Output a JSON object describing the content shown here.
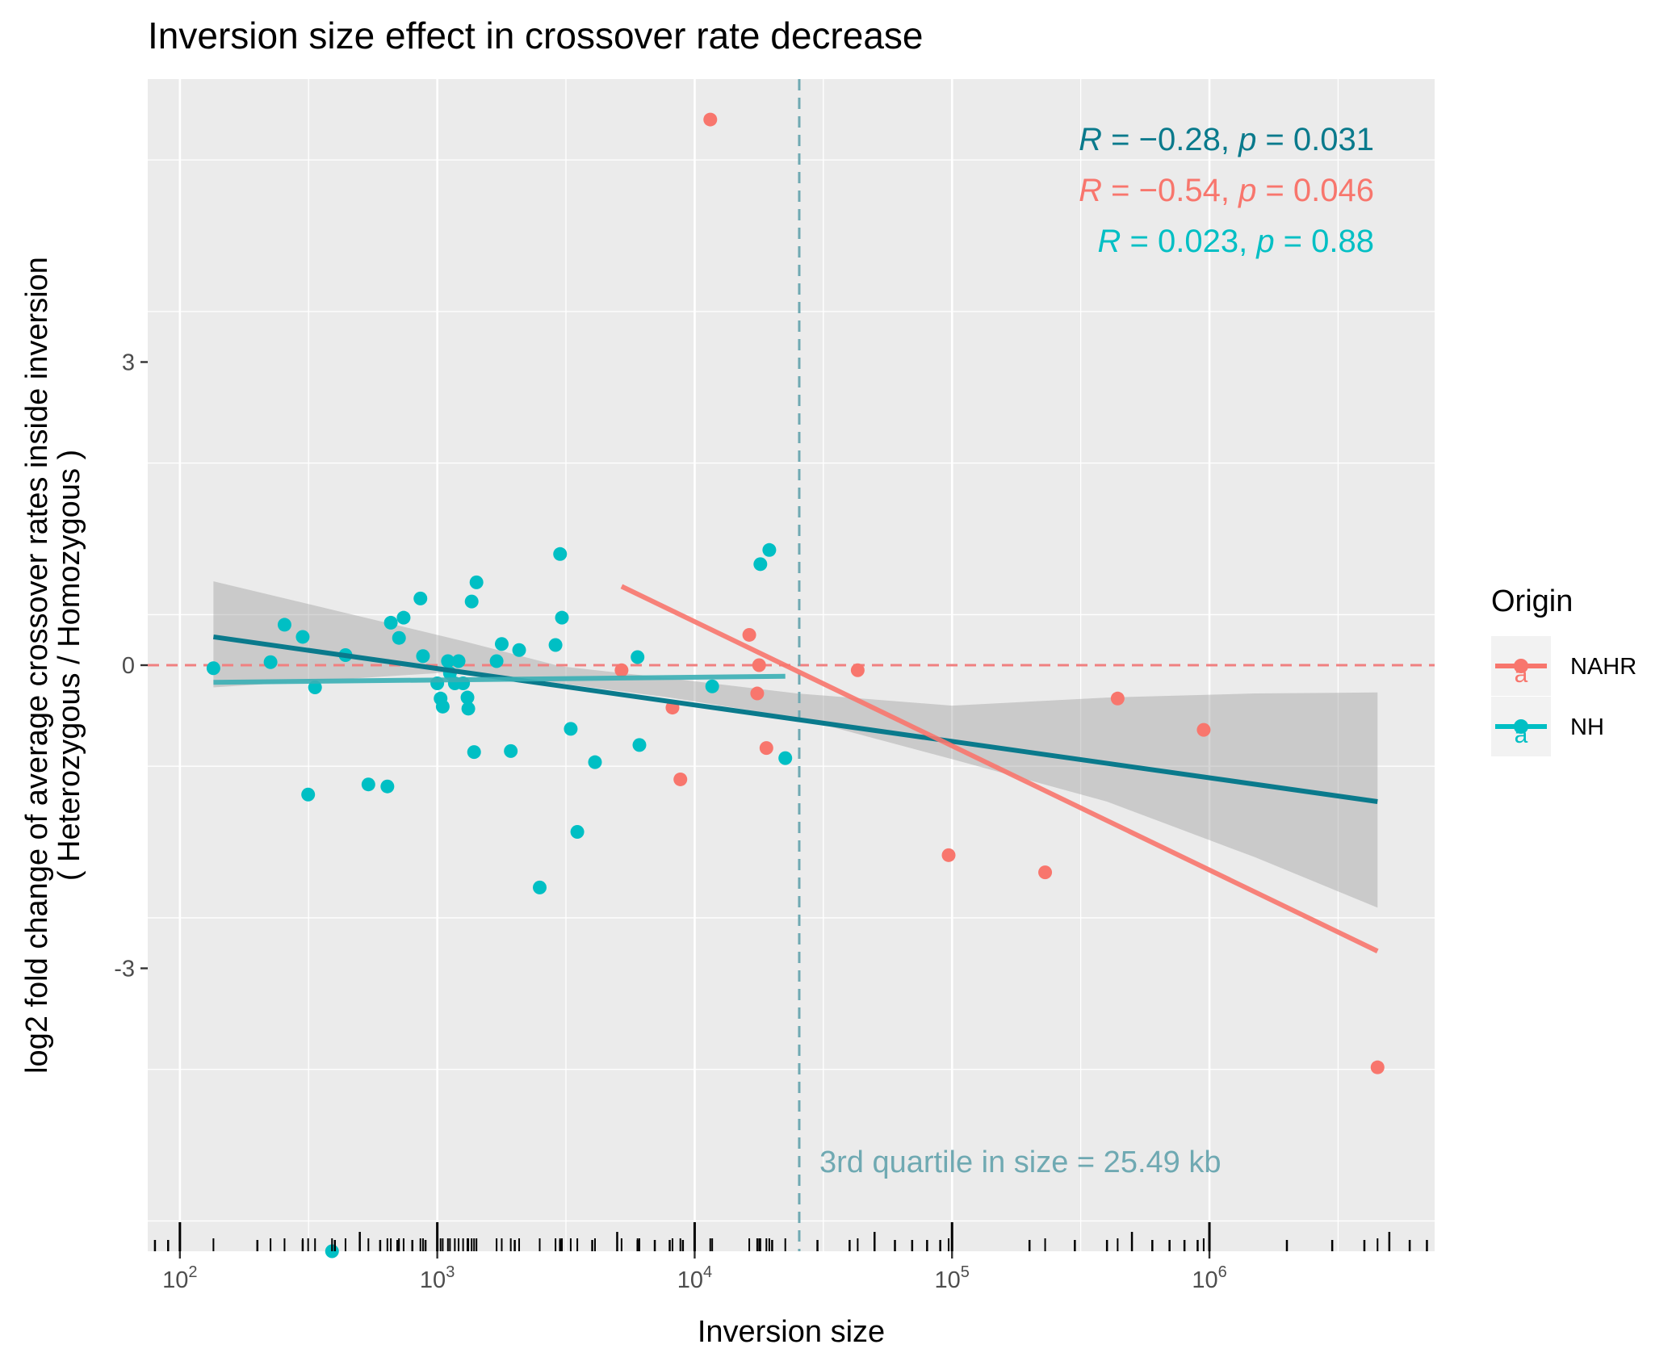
{
  "chart_data": {
    "type": "scatter",
    "title": "Inversion size effect in crossover rate decrease",
    "xlabel": "Inversion size",
    "ylabel_line1": "log2 fold change of average crossover rates inside inversion",
    "ylabel_line2": "( Heterozygous / Homozygous )",
    "x_scale": "log10",
    "xlim": [
      75,
      7500000
    ],
    "ylim": [
      -5.8,
      5.8
    ],
    "x_tick_labels": [
      {
        "value": 100,
        "base": "10",
        "exp": "2"
      },
      {
        "value": 1000,
        "base": "10",
        "exp": "3"
      },
      {
        "value": 10000,
        "base": "10",
        "exp": "4"
      },
      {
        "value": 100000,
        "base": "10",
        "exp": "5"
      },
      {
        "value": 1000000,
        "base": "10",
        "exp": "6"
      }
    ],
    "y_ticks": [
      -3,
      0,
      3
    ],
    "y_tick_labels": [
      "-3",
      "0",
      "3"
    ],
    "grid": true,
    "legend": {
      "title": "Origin",
      "position": "right",
      "key_glyph": "a",
      "entries": [
        {
          "name": "NAHR",
          "color": "#F8766D"
        },
        {
          "name": "NH",
          "color": "#00BFC4"
        }
      ]
    },
    "colors": {
      "NAHR": "#F8766D",
      "NH": "#00BFC4",
      "overall": "#0A7A8C",
      "ribbon": "#C2C2C2",
      "quartile_line": "#6FA9B2",
      "zero_line": "#F08080",
      "panel": "#EBEBEB"
    },
    "series": [
      {
        "name": "NAHR",
        "points": [
          {
            "x": 11500,
            "y": 5.4
          },
          {
            "x": 5200,
            "y": -0.05
          },
          {
            "x": 8200,
            "y": -0.42
          },
          {
            "x": 8800,
            "y": -1.13
          },
          {
            "x": 16300,
            "y": 0.3
          },
          {
            "x": 17500,
            "y": -0.28
          },
          {
            "x": 17800,
            "y": 0.0
          },
          {
            "x": 19000,
            "y": -0.82
          },
          {
            "x": 43000,
            "y": -0.05
          },
          {
            "x": 97000,
            "y": -1.88
          },
          {
            "x": 230000,
            "y": -2.05
          },
          {
            "x": 440000,
            "y": -0.33
          },
          {
            "x": 950000,
            "y": -0.64
          },
          {
            "x": 4500000,
            "y": -3.98
          }
        ]
      },
      {
        "name": "NH",
        "points": [
          {
            "x": 135,
            "y": -0.03
          },
          {
            "x": 225,
            "y": 0.03
          },
          {
            "x": 255,
            "y": 0.4
          },
          {
            "x": 300,
            "y": 0.28
          },
          {
            "x": 315,
            "y": -1.28
          },
          {
            "x": 335,
            "y": -0.22
          },
          {
            "x": 390,
            "y": -5.85
          },
          {
            "x": 440,
            "y": 0.1
          },
          {
            "x": 540,
            "y": -1.18
          },
          {
            "x": 640,
            "y": -1.2
          },
          {
            "x": 660,
            "y": 0.42
          },
          {
            "x": 710,
            "y": 0.27
          },
          {
            "x": 740,
            "y": 0.47
          },
          {
            "x": 860,
            "y": 0.66
          },
          {
            "x": 880,
            "y": 0.09
          },
          {
            "x": 1000,
            "y": -0.18
          },
          {
            "x": 1030,
            "y": -0.33
          },
          {
            "x": 1050,
            "y": -0.41
          },
          {
            "x": 1100,
            "y": 0.04
          },
          {
            "x": 1120,
            "y": -0.08
          },
          {
            "x": 1170,
            "y": -0.18
          },
          {
            "x": 1210,
            "y": 0.04
          },
          {
            "x": 1260,
            "y": -0.18
          },
          {
            "x": 1310,
            "y": -0.32
          },
          {
            "x": 1320,
            "y": -0.43
          },
          {
            "x": 1360,
            "y": 0.63
          },
          {
            "x": 1390,
            "y": -0.86
          },
          {
            "x": 1420,
            "y": 0.82
          },
          {
            "x": 1700,
            "y": 0.04
          },
          {
            "x": 1780,
            "y": 0.21
          },
          {
            "x": 1930,
            "y": -0.85
          },
          {
            "x": 2080,
            "y": 0.15
          },
          {
            "x": 2500,
            "y": -2.2
          },
          {
            "x": 2880,
            "y": 0.2
          },
          {
            "x": 3000,
            "y": 1.1
          },
          {
            "x": 3050,
            "y": 0.47
          },
          {
            "x": 3300,
            "y": -0.63
          },
          {
            "x": 3500,
            "y": -1.65
          },
          {
            "x": 4100,
            "y": -0.96
          },
          {
            "x": 6000,
            "y": 0.08
          },
          {
            "x": 6100,
            "y": -0.79
          },
          {
            "x": 11700,
            "y": -0.21
          },
          {
            "x": 18000,
            "y": 1.0
          },
          {
            "x": 19500,
            "y": 1.14
          },
          {
            "x": 22500,
            "y": -0.92
          }
        ]
      }
    ],
    "fits": [
      {
        "name": "overall",
        "x": [
          135,
          4500000
        ],
        "y": [
          0.28,
          -1.35
        ]
      },
      {
        "name": "NAHR",
        "x": [
          5200,
          4500000
        ],
        "y": [
          0.78,
          -2.83
        ]
      },
      {
        "name": "NH",
        "x": [
          135,
          22500
        ],
        "y": [
          -0.17,
          -0.11
        ]
      }
    ],
    "ribbon": {
      "x": [
        135,
        1300,
        3000,
        8000,
        25000,
        100000,
        400000,
        1500000,
        4500000
      ],
      "lower": [
        -0.22,
        -0.06,
        -0.18,
        -0.32,
        -0.52,
        -0.93,
        -1.35,
        -1.9,
        -2.4
      ],
      "upper": [
        0.83,
        0.23,
        -0.01,
        -0.13,
        -0.28,
        -0.4,
        -0.32,
        -0.28,
        -0.27
      ]
    },
    "hline": {
      "y": 0,
      "style": "dashed"
    },
    "vline": {
      "x": 25490,
      "style": "dashed"
    },
    "rug_x": [
      135,
      225,
      255,
      300,
      315,
      335,
      390,
      440,
      540,
      640,
      660,
      710,
      740,
      860,
      880,
      1000,
      1030,
      1050,
      1100,
      1120,
      1170,
      1210,
      1260,
      1310,
      1320,
      1360,
      1390,
      1420,
      1700,
      1780,
      1930,
      2080,
      2500,
      2880,
      3000,
      3050,
      3300,
      3500,
      4100,
      5200,
      6000,
      6100,
      8200,
      8800,
      11500,
      11700,
      16300,
      17500,
      17800,
      18000,
      19000,
      19500,
      22500,
      43000,
      97000,
      230000,
      440000,
      950000,
      4500000
    ],
    "stats": [
      {
        "r": "−0.28",
        "p": "0.031",
        "color": "#0A7A8C"
      },
      {
        "r": "−0.54",
        "p": "0.046",
        "color": "#F8766D"
      },
      {
        "r": "0.023",
        "p": "0.88",
        "color": "#00BFC4"
      }
    ],
    "annotation": "3rd quartile in size = 25.49 kb"
  }
}
